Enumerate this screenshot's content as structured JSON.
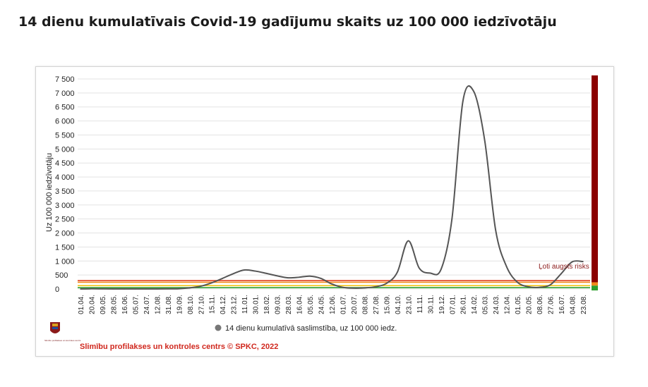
{
  "page": {
    "title": "14 dienu kumulatīvais Covid-19 gadījumu skaits uz 100 000 iedzīvotāju"
  },
  "chart_data": {
    "type": "line",
    "ylabel": "Uz 100 000 iedzīvotāju",
    "ylim": [
      0,
      7500
    ],
    "yticks": [
      0,
      500,
      1000,
      1500,
      2000,
      2500,
      3000,
      3500,
      4000,
      4500,
      5000,
      5500,
      6000,
      6500,
      7000,
      7500
    ],
    "ytick_labels": [
      "0",
      "500",
      "1 000",
      "1 500",
      "2 000",
      "2 500",
      "3 000",
      "3 500",
      "4 000",
      "4 500",
      "5 000",
      "5 500",
      "6 000",
      "6 500",
      "7 000",
      "7 500"
    ],
    "categories": [
      "01.04.",
      "20.04.",
      "09.05.",
      "28.05.",
      "16.06.",
      "05.07.",
      "24.07.",
      "12.08.",
      "31.08.",
      "19.09.",
      "08.10.",
      "27.10.",
      "15.11.",
      "04.12.",
      "23.12.",
      "11.01.",
      "30.01.",
      "18.02.",
      "09.03.",
      "28.03.",
      "16.04.",
      "05.05.",
      "24.05.",
      "12.06.",
      "01.07.",
      "20.07.",
      "08.08.",
      "27.08.",
      "15.09.",
      "04.10.",
      "23.10.",
      "11.11.",
      "30.11.",
      "19.12.",
      "07.01.",
      "26.01.",
      "14.02.",
      "05.03.",
      "24.03.",
      "12.04.",
      "01.05.",
      "20.05.",
      "08.06.",
      "27.06.",
      "16.07.",
      "04.08.",
      "23.08."
    ],
    "series": [
      {
        "name": "14 dienu kumulatīvā saslimstība, uz 100 000 iedz.",
        "color": "#555555",
        "values": [
          2,
          8,
          5,
          3,
          2,
          2,
          3,
          3,
          5,
          10,
          40,
          100,
          220,
          380,
          550,
          680,
          640,
          560,
          470,
          400,
          420,
          460,
          380,
          180,
          60,
          30,
          40,
          80,
          200,
          600,
          1720,
          750,
          570,
          700,
          2500,
          6700,
          7050,
          5300,
          2100,
          800,
          240,
          80,
          60,
          150,
          550,
          970,
          980
        ]
      }
    ],
    "threshold_lines": [
      {
        "value": 50,
        "color": "#2e9e2e"
      },
      {
        "value": 120,
        "color": "#f0c419"
      },
      {
        "value": 240,
        "color": "#f08a1c"
      },
      {
        "value": 300,
        "color": "#e04020"
      }
    ],
    "risk_bar": {
      "colors": [
        "#2e9e2e",
        "#8b0000"
      ]
    },
    "annotation": "Ļoti augsts risks",
    "legend": {
      "placement": "bottom-center",
      "label": "14 dienu kumulatīvā saslimstība, uz 100 000 iedz."
    },
    "credit": "Slimību profilakses un kontroles centrs © SPKC, 2022",
    "logo_text": "Slimību profilakses un kontroles centrs",
    "grid": true
  }
}
